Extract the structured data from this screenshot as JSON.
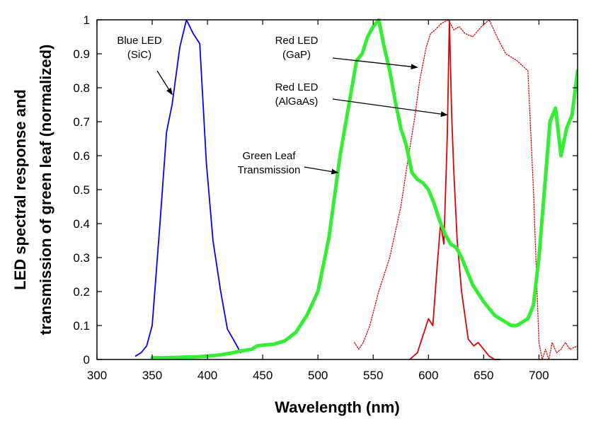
{
  "chart_data": {
    "type": "line",
    "xlabel": "Wavelength (nm)",
    "ylabel_line1": "LED spectral response and",
    "ylabel_line2": "transmission of green leaf (normalized)",
    "xlim": [
      300,
      735
    ],
    "ylim": [
      0,
      1
    ],
    "xticks": [
      300,
      350,
      400,
      450,
      500,
      550,
      600,
      650,
      700
    ],
    "yticks": [
      0,
      0.1,
      0.2,
      0.3,
      0.4,
      0.5,
      0.6,
      0.7,
      0.8,
      0.9,
      1
    ],
    "grid": false,
    "series": [
      {
        "name": "Blue LED (SiC)",
        "color": "#0000ff",
        "style": "solid",
        "x": [
          335,
          340,
          345,
          350,
          357,
          363,
          368,
          375,
          381,
          387,
          393,
          399,
          405,
          412,
          418,
          425,
          430
        ],
        "y": [
          0.01,
          0.02,
          0.04,
          0.1,
          0.4,
          0.67,
          0.75,
          0.92,
          1.0,
          0.96,
          0.93,
          0.58,
          0.35,
          0.2,
          0.09,
          0.05,
          0.02
        ]
      },
      {
        "name": "Red LED (GaP)",
        "color": "#e00000",
        "style": "dotted",
        "x": [
          533,
          537,
          541,
          547,
          555,
          565,
          575,
          582,
          588,
          592,
          598,
          602,
          606,
          612,
          618,
          623,
          628,
          633,
          640,
          648,
          655,
          662,
          670,
          680,
          690,
          695,
          700,
          703,
          706,
          709,
          712,
          716,
          720,
          724,
          728,
          735
        ],
        "y": [
          0.05,
          0.03,
          0.05,
          0.1,
          0.2,
          0.3,
          0.45,
          0.6,
          0.72,
          0.82,
          0.92,
          0.96,
          0.97,
          0.99,
          1.0,
          0.97,
          0.98,
          0.96,
          0.95,
          0.98,
          1.0,
          0.95,
          0.9,
          0.88,
          0.85,
          0.5,
          0.05,
          0.0,
          0.03,
          0.0,
          0.05,
          0.02,
          0.03,
          0.05,
          0.03,
          0.04
        ]
      },
      {
        "name": "Red LED (AlGaAs)",
        "color": "#e00000",
        "style": "solid",
        "x": [
          583,
          590,
          595,
          600,
          604,
          608,
          611,
          614,
          617,
          619,
          621,
          623,
          626,
          630,
          636,
          641,
          645,
          650,
          655,
          660,
          665
        ],
        "y": [
          0.0,
          0.02,
          0.07,
          0.12,
          0.1,
          0.28,
          0.4,
          0.34,
          0.65,
          1.0,
          0.72,
          0.55,
          0.35,
          0.2,
          0.06,
          0.04,
          0.05,
          0.03,
          0.01,
          0.0,
          0.0
        ]
      },
      {
        "name": "Green Leaf Transmission",
        "color": "#33ee33",
        "style": "solid-thick",
        "x": [
          350,
          360,
          370,
          380,
          390,
          400,
          410,
          420,
          430,
          440,
          445,
          450,
          460,
          470,
          480,
          490,
          500,
          510,
          520,
          528,
          535,
          540,
          545,
          550,
          555,
          560,
          565,
          570,
          575,
          580,
          585,
          590,
          595,
          600,
          605,
          610,
          615,
          620,
          625,
          630,
          640,
          650,
          660,
          670,
          675,
          680,
          690,
          695,
          700,
          705,
          710,
          715,
          720,
          725,
          730,
          735
        ],
        "y": [
          0.005,
          0.005,
          0.006,
          0.007,
          0.008,
          0.01,
          0.013,
          0.018,
          0.025,
          0.03,
          0.04,
          0.042,
          0.045,
          0.055,
          0.08,
          0.13,
          0.2,
          0.36,
          0.6,
          0.75,
          0.88,
          0.9,
          0.95,
          0.98,
          1.0,
          0.92,
          0.85,
          0.76,
          0.68,
          0.63,
          0.55,
          0.53,
          0.52,
          0.5,
          0.46,
          0.41,
          0.37,
          0.34,
          0.33,
          0.3,
          0.22,
          0.17,
          0.13,
          0.11,
          0.1,
          0.1,
          0.12,
          0.16,
          0.3,
          0.5,
          0.7,
          0.74,
          0.6,
          0.68,
          0.72,
          0.85
        ]
      }
    ],
    "annotations": [
      {
        "lines": [
          "Blue LED",
          "(SiC)"
        ],
        "arrow_to": [
          368,
          0.78
        ]
      },
      {
        "lines": [
          "Red LED",
          "(GaP)"
        ],
        "arrow_to": [
          590,
          0.86
        ]
      },
      {
        "lines": [
          "Red LED",
          "(AlGaAs)"
        ],
        "arrow_to": [
          617,
          0.72
        ]
      },
      {
        "lines": [
          "Green Leaf",
          "Transmission"
        ],
        "arrow_to": [
          518,
          0.55
        ]
      }
    ]
  }
}
